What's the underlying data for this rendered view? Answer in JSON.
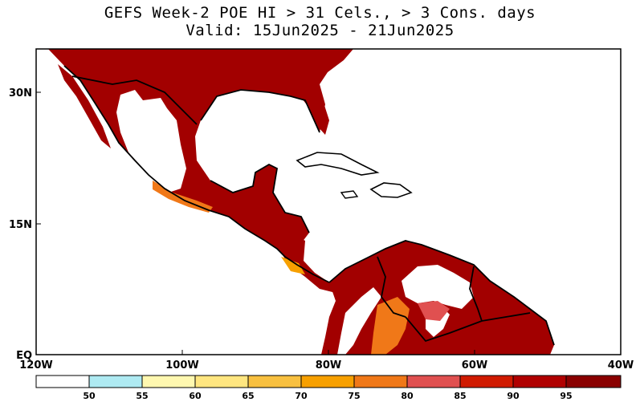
{
  "title": {
    "line1": "GEFS Week-2 POE HI > 31 Cels., > 3 Cons. days",
    "line2": "Valid: 15Jun2025 - 21Jun2025"
  },
  "axes": {
    "x_ticks": [
      "120W",
      "100W",
      "80W",
      "60W",
      "40W"
    ],
    "y_ticks": [
      "30N",
      "15N",
      "EQ"
    ]
  },
  "colorbar": {
    "labels": [
      "50",
      "55",
      "60",
      "65",
      "70",
      "75",
      "80",
      "85",
      "90",
      "95"
    ],
    "colors": [
      "#ffffff",
      "#aeeaf2",
      "#fff8b0",
      "#ffe680",
      "#f8c040",
      "#f7a000",
      "#f07818",
      "#e05050",
      "#d01a00",
      "#b00000",
      "#8a0000"
    ]
  },
  "map": {
    "ocean_color": "#ffffff",
    "land_low_color": "#ffffff",
    "land_high_color": "#a20000",
    "border_color": "#000000"
  }
}
